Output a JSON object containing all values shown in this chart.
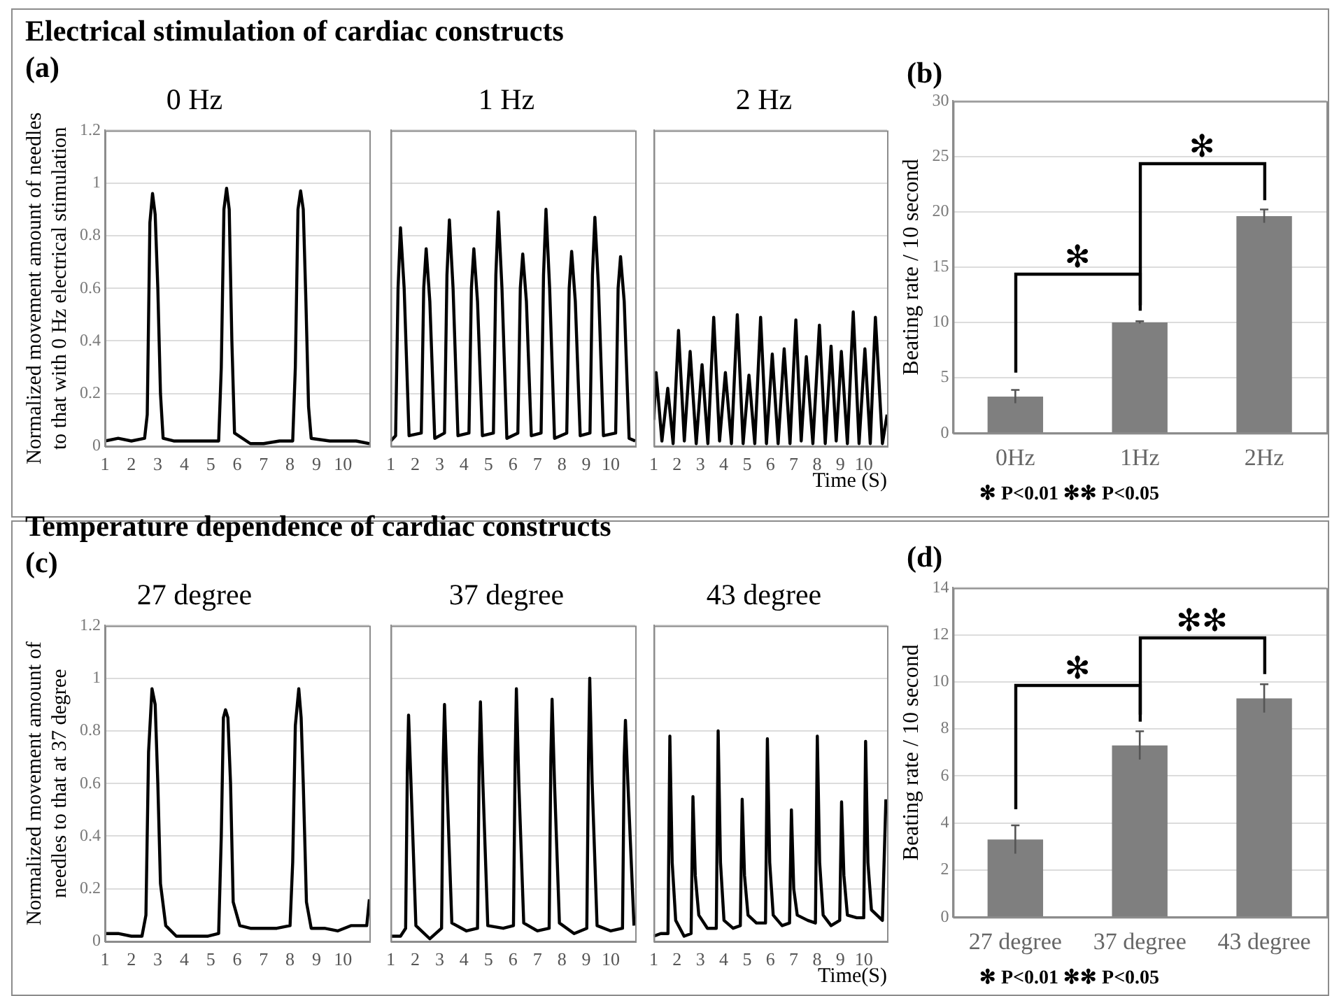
{
  "chart_data": [
    {
      "type": "line",
      "title": "0 Hz",
      "ylabel": "Normalized movement amount of needles to that with 0 Hz electrical stimulation",
      "annotations": [
        "Electrical stimulation of cardiac constructs",
        "(a)"
      ],
      "color": "#000000",
      "marker": "none",
      "grid": "y",
      "xlim": [
        1,
        11
      ],
      "xticks": [
        1,
        2,
        3,
        4,
        5,
        6,
        7,
        8,
        9,
        10
      ],
      "ylim": [
        0,
        1.2
      ],
      "yticks": [
        0,
        0.2,
        0.4,
        0.6,
        0.8,
        1,
        1.2
      ],
      "x": [
        1,
        1.5,
        2,
        2.5,
        2.6,
        2.7,
        2.8,
        2.9,
        3,
        3.1,
        3.2,
        3.6,
        4.2,
        4.8,
        5.3,
        5.4,
        5.5,
        5.6,
        5.7,
        5.8,
        5.9,
        6.5,
        7,
        7.6,
        8.1,
        8.2,
        8.3,
        8.4,
        8.5,
        8.6,
        8.7,
        8.8,
        9.5,
        10,
        10.5,
        11
      ],
      "values": [
        0.02,
        0.03,
        0.02,
        0.03,
        0.12,
        0.85,
        0.96,
        0.88,
        0.6,
        0.2,
        0.03,
        0.02,
        0.02,
        0.02,
        0.02,
        0.3,
        0.9,
        0.98,
        0.9,
        0.4,
        0.05,
        0.01,
        0.01,
        0.02,
        0.02,
        0.3,
        0.9,
        0.97,
        0.9,
        0.55,
        0.15,
        0.03,
        0.02,
        0.02,
        0.02,
        0.01
      ]
    },
    {
      "type": "line",
      "title": "1 Hz",
      "color": "#000000",
      "marker": "none",
      "grid": "y",
      "tick_labels": "x",
      "xlim": [
        1,
        11
      ],
      "xticks": [
        1,
        2,
        3,
        4,
        5,
        6,
        7,
        8,
        9,
        10
      ],
      "ylim": [
        0,
        1.2
      ],
      "yticks": [
        0,
        0.2,
        0.4,
        0.6,
        0.8,
        1,
        1.2
      ],
      "x": [
        1,
        1.2,
        1.3,
        1.4,
        1.55,
        1.75,
        2.25,
        2.35,
        2.45,
        2.6,
        2.8,
        3.2,
        3.3,
        3.4,
        3.55,
        3.75,
        4.2,
        4.3,
        4.4,
        4.55,
        4.75,
        5.2,
        5.3,
        5.4,
        5.55,
        5.75,
        6.2,
        6.3,
        6.4,
        6.55,
        6.75,
        7.15,
        7.25,
        7.35,
        7.5,
        7.7,
        8.2,
        8.3,
        8.4,
        8.55,
        8.75,
        9.15,
        9.25,
        9.35,
        9.5,
        9.7,
        10.2,
        10.3,
        10.4,
        10.55,
        10.75,
        11
      ],
      "values": [
        0.02,
        0.04,
        0.6,
        0.83,
        0.6,
        0.04,
        0.05,
        0.6,
        0.75,
        0.55,
        0.03,
        0.05,
        0.65,
        0.86,
        0.6,
        0.04,
        0.05,
        0.6,
        0.75,
        0.55,
        0.04,
        0.05,
        0.65,
        0.89,
        0.6,
        0.03,
        0.05,
        0.6,
        0.73,
        0.55,
        0.04,
        0.05,
        0.65,
        0.9,
        0.6,
        0.03,
        0.05,
        0.6,
        0.74,
        0.55,
        0.04,
        0.05,
        0.65,
        0.87,
        0.6,
        0.04,
        0.05,
        0.6,
        0.72,
        0.55,
        0.03,
        0.02
      ]
    },
    {
      "type": "line",
      "title": "2 Hz",
      "xlabel": "Time (S)",
      "color": "#000000",
      "marker": "none",
      "grid": "y",
      "tick_labels": "x",
      "xlim": [
        1,
        11
      ],
      "xticks": [
        1,
        2,
        3,
        4,
        5,
        6,
        7,
        8,
        9,
        10
      ],
      "ylim": [
        0,
        1.2
      ],
      "yticks": [
        0,
        0.2,
        0.4,
        0.6,
        0.8,
        1,
        1.2
      ],
      "x": [
        1,
        1.1,
        1.35,
        1.6,
        1.83,
        2.06,
        2.31,
        2.56,
        2.82,
        3.07,
        3.32,
        3.57,
        3.82,
        4.07,
        4.33,
        4.58,
        4.83,
        5.08,
        5.33,
        5.58,
        5.83,
        6.08,
        6.33,
        6.59,
        6.84,
        7.09,
        7.32,
        7.54,
        7.82,
        8.1,
        8.35,
        8.6,
        8.82,
        9.04,
        9.3,
        9.55,
        9.8,
        10.05,
        10.28,
        10.5,
        10.8,
        11
      ],
      "values": [
        0.1,
        0.28,
        0.02,
        0.22,
        0.01,
        0.44,
        0.02,
        0.36,
        0.01,
        0.31,
        0.01,
        0.49,
        0.02,
        0.28,
        0.01,
        0.5,
        0.01,
        0.27,
        0.01,
        0.49,
        0.01,
        0.35,
        0.01,
        0.37,
        0.01,
        0.48,
        0.02,
        0.34,
        0.01,
        0.46,
        0.01,
        0.38,
        0.02,
        0.36,
        0.01,
        0.51,
        0.01,
        0.37,
        0.01,
        0.49,
        0.01,
        0.12
      ]
    },
    {
      "type": "bar",
      "ylabel": "Beating rate / 10 second",
      "annotations": [
        "(b)",
        "✻",
        "✻",
        "✻ P<0.01   ✻✻ P<0.05"
      ],
      "categories": [
        "0Hz",
        "1Hz",
        "2Hz"
      ],
      "values": [
        3.3,
        10,
        19.6
      ],
      "errors": [
        0.6,
        0.1,
        0.6
      ],
      "color": "#7f7f7f",
      "grid": "y",
      "ylim": [
        0,
        30
      ],
      "yticks": [
        0,
        5,
        10,
        15,
        20,
        25,
        30
      ]
    },
    {
      "type": "line",
      "title": "27 degree",
      "ylabel": "Normalized movement amount of needles to that at 37 degree",
      "annotations": [
        "Temperature dependence of cardiac constructs",
        "(c)"
      ],
      "color": "#000000",
      "marker": "none",
      "grid": "y",
      "xlim": [
        1,
        11
      ],
      "xticks": [
        1,
        2,
        3,
        4,
        5,
        6,
        7,
        8,
        9,
        10
      ],
      "ylim": [
        0,
        1.2
      ],
      "yticks": [
        0,
        0.2,
        0.4,
        0.6,
        0.8,
        1,
        1.2
      ],
      "x": [
        1,
        1.5,
        2,
        2.4,
        2.55,
        2.65,
        2.78,
        2.9,
        3.0,
        3.1,
        3.3,
        3.7,
        4.3,
        4.9,
        5.3,
        5.4,
        5.48,
        5.56,
        5.65,
        5.75,
        5.85,
        6.1,
        6.5,
        7,
        7.5,
        8,
        8.1,
        8.2,
        8.33,
        8.42,
        8.5,
        8.62,
        8.8,
        9.3,
        9.8,
        10.3,
        10.8,
        10.9,
        11
      ],
      "values": [
        0.03,
        0.03,
        0.02,
        0.02,
        0.1,
        0.72,
        0.96,
        0.9,
        0.6,
        0.22,
        0.06,
        0.02,
        0.02,
        0.02,
        0.03,
        0.4,
        0.85,
        0.88,
        0.85,
        0.6,
        0.15,
        0.06,
        0.05,
        0.05,
        0.05,
        0.06,
        0.3,
        0.82,
        0.96,
        0.85,
        0.6,
        0.15,
        0.05,
        0.05,
        0.04,
        0.06,
        0.06,
        0.06,
        0.16
      ]
    },
    {
      "type": "line",
      "title": "37 degree",
      "color": "#000000",
      "marker": "none",
      "grid": "y",
      "tick_labels": "x",
      "xlim": [
        1,
        11
      ],
      "xticks": [
        1,
        2,
        3,
        4,
        5,
        6,
        7,
        8,
        9,
        10
      ],
      "ylim": [
        0,
        1.2
      ],
      "yticks": [
        0,
        0.2,
        0.4,
        0.6,
        0.8,
        1,
        1.2
      ],
      "x": [
        1,
        1.4,
        1.61,
        1.68,
        1.73,
        1.83,
        2.03,
        2.6,
        3.08,
        3.15,
        3.2,
        3.3,
        3.5,
        4.1,
        4.55,
        4.62,
        4.67,
        4.77,
        4.97,
        5.6,
        6.02,
        6.09,
        6.14,
        6.24,
        6.44,
        7,
        7.48,
        7.55,
        7.6,
        7.7,
        7.9,
        8.5,
        9.02,
        9.09,
        9.14,
        9.24,
        9.44,
        10,
        10.48,
        10.55,
        10.6,
        10.7,
        10.95
      ],
      "values": [
        0.02,
        0.02,
        0.05,
        0.65,
        0.86,
        0.6,
        0.06,
        0.01,
        0.05,
        0.7,
        0.9,
        0.6,
        0.07,
        0.04,
        0.05,
        0.7,
        0.91,
        0.6,
        0.06,
        0.05,
        0.06,
        0.7,
        0.96,
        0.6,
        0.07,
        0.04,
        0.05,
        0.7,
        0.92,
        0.6,
        0.07,
        0.03,
        0.05,
        0.7,
        1,
        0.6,
        0.06,
        0.04,
        0.05,
        0.7,
        0.84,
        0.6,
        0.06
      ]
    },
    {
      "type": "line",
      "title": "43 degree",
      "xlabel": "Time(S)",
      "color": "#000000",
      "marker": "none",
      "grid": "y",
      "tick_labels": "x",
      "xlim": [
        1,
        11
      ],
      "xticks": [
        1,
        2,
        3,
        4,
        5,
        6,
        7,
        8,
        9,
        10
      ],
      "ylim": [
        0,
        1.2
      ],
      "yticks": [
        0,
        0.2,
        0.4,
        0.6,
        0.8,
        1,
        1.2
      ],
      "x": [
        1,
        1.3,
        1.61,
        1.69,
        1.79,
        1.94,
        2.3,
        2.6,
        2.68,
        2.78,
        2.93,
        3.3,
        3.68,
        3.76,
        3.86,
        4.01,
        4.4,
        4.71,
        4.79,
        4.89,
        5.04,
        5.4,
        5.79,
        5.87,
        5.97,
        6.12,
        6.5,
        6.82,
        6.9,
        7,
        7.15,
        7.6,
        7.93,
        8.01,
        8.11,
        8.26,
        8.6,
        8.97,
        9.05,
        9.15,
        9.3,
        9.7,
        10,
        10.08,
        10.18,
        10.33,
        10.8,
        10.95
      ],
      "values": [
        0.02,
        0.03,
        0.03,
        0.78,
        0.3,
        0.08,
        0.02,
        0.03,
        0.55,
        0.25,
        0.1,
        0.05,
        0.05,
        0.8,
        0.3,
        0.08,
        0.05,
        0.06,
        0.54,
        0.25,
        0.1,
        0.07,
        0.07,
        0.77,
        0.3,
        0.1,
        0.06,
        0.07,
        0.5,
        0.2,
        0.1,
        0.08,
        0.07,
        0.78,
        0.3,
        0.1,
        0.06,
        0.08,
        0.53,
        0.25,
        0.1,
        0.09,
        0.09,
        0.76,
        0.3,
        0.12,
        0.08,
        0.54
      ]
    },
    {
      "type": "bar",
      "ylabel": "Beating rate / 10 second",
      "annotations": [
        "(d)",
        "✻",
        "✻✻",
        "✻ P<0.01   ✻✻ P<0.05"
      ],
      "categories": [
        "27 degree",
        "37 degree",
        "43 degree"
      ],
      "values": [
        3.3,
        7.3,
        9.3
      ],
      "errors": [
        0.6,
        0.6,
        0.6
      ],
      "color": "#7f7f7f",
      "grid": "y",
      "ylim": [
        0,
        14
      ],
      "yticks": [
        0,
        2,
        4,
        6,
        8,
        10,
        12,
        14
      ]
    }
  ]
}
